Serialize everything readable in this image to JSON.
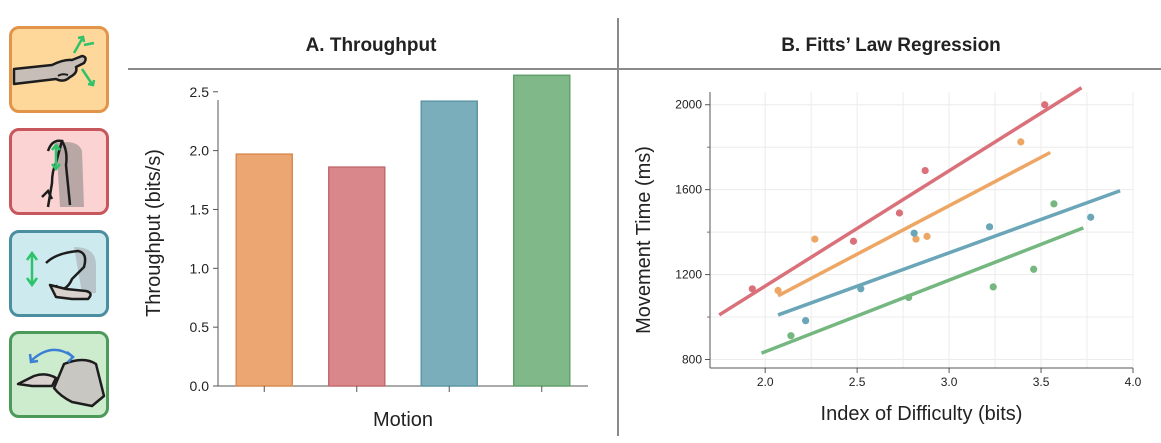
{
  "icons": [
    {
      "name": "wrist-rotation-icon",
      "fill": "#fdd89a",
      "border": "#e2954a"
    },
    {
      "name": "elbow-flexion-icon",
      "fill": "#fbd3d3",
      "border": "#c8575d"
    },
    {
      "name": "forearm-lift-icon",
      "fill": "#cdebef",
      "border": "#4b8ea0"
    },
    {
      "name": "arm-sweep-icon",
      "fill": "#cdeccd",
      "border": "#4b9a5a"
    }
  ],
  "arrow_color": "#2ec36a",
  "arrow_color_alt": "#3a7fd5",
  "chart_data": [
    {
      "type": "bar",
      "title": "A. Throughput",
      "xlabel": "Motion",
      "ylabel": "Throughput (bits/s)",
      "ylim": [
        0,
        2.6
      ],
      "yticks": [
        "0.0",
        "0.5",
        "1.0",
        "1.5",
        "2.0",
        "2.5"
      ],
      "grid": false,
      "values": [
        1.97,
        1.86,
        2.42,
        2.64
      ],
      "colors": [
        "#eca672",
        "#d9878a",
        "#7aaebb",
        "#80b889"
      ],
      "edge_colors": [
        "#d88b53",
        "#c26b70",
        "#5d97a6",
        "#62a06d"
      ]
    },
    {
      "type": "scatter",
      "title": "B. Fitts’ Law Regression",
      "xlabel": "Index of Difficulty (bits)",
      "ylabel": "Movement Time (ms)",
      "xlim": [
        1.7,
        4.0
      ],
      "ylim": [
        760,
        2060
      ],
      "xticks": [
        "2.0",
        "2.5",
        "3.0",
        "3.5",
        "4.0"
      ],
      "yticks": [
        "800",
        "1200",
        "1600",
        "2000"
      ],
      "grid": true,
      "series": [
        {
          "color": "#d9707a",
          "points": [
            [
              1.93,
              1133
            ],
            [
              2.48,
              1357
            ],
            [
              2.73,
              1490
            ],
            [
              2.87,
              1690
            ],
            [
              3.52,
              2000
            ]
          ],
          "fit": [
            [
              1.75,
              1010
            ],
            [
              3.72,
              2080
            ]
          ]
        },
        {
          "color": "#eea664",
          "points": [
            [
              2.07,
              1125
            ],
            [
              2.27,
              1367
            ],
            [
              2.82,
              1367
            ],
            [
              2.88,
              1380
            ],
            [
              3.39,
              1825
            ]
          ],
          "fit": [
            [
              2.07,
              1100
            ],
            [
              3.55,
              1775
            ]
          ]
        },
        {
          "color": "#6aa6b8",
          "points": [
            [
              2.22,
              983
            ],
            [
              2.52,
              1133
            ],
            [
              2.81,
              1395
            ],
            [
              3.22,
              1425
            ],
            [
              3.77,
              1470
            ]
          ],
          "fit": [
            [
              2.07,
              1010
            ],
            [
              3.93,
              1595
            ]
          ]
        },
        {
          "color": "#74b77f",
          "points": [
            [
              2.14,
              912
            ],
            [
              2.78,
              1092
            ],
            [
              3.24,
              1142
            ],
            [
              3.46,
              1225
            ],
            [
              3.57,
              1533
            ]
          ],
          "fit": [
            [
              1.98,
              830
            ],
            [
              3.73,
              1420
            ]
          ]
        }
      ]
    }
  ]
}
